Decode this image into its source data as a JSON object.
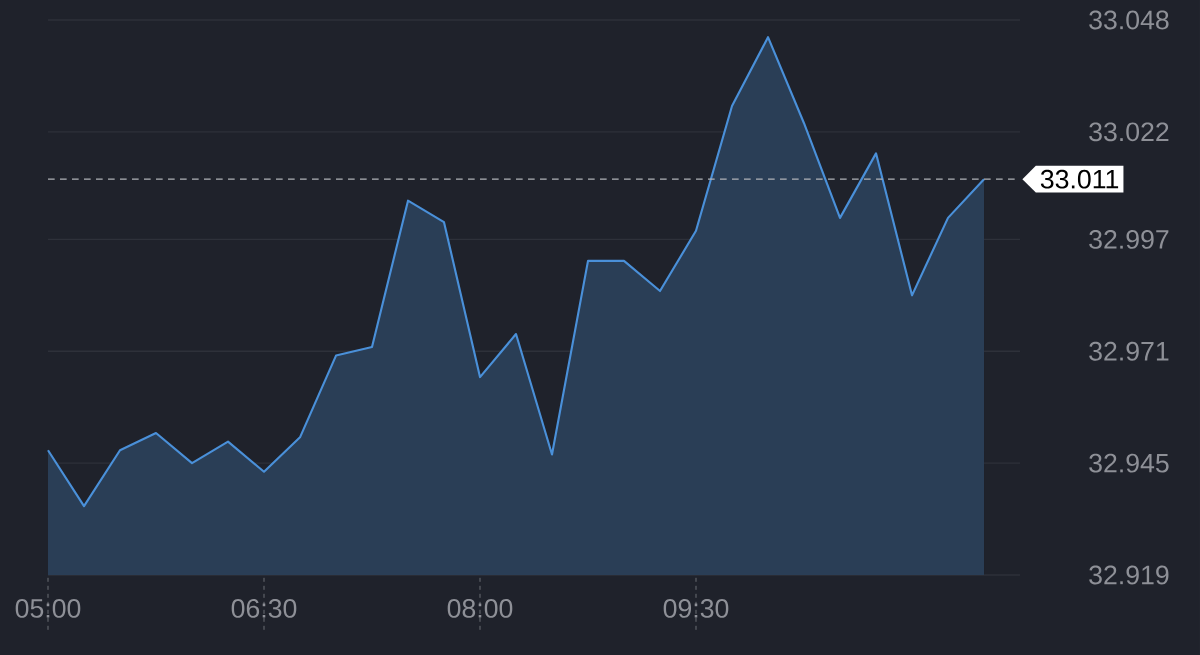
{
  "chart_data": {
    "type": "area",
    "color": "#4a90d9",
    "x": [
      5,
      5.25,
      5.5,
      5.75,
      6,
      6.25,
      6.5,
      6.75,
      7,
      7.25,
      7.5,
      7.75,
      8,
      8.25,
      8.5,
      8.75,
      9,
      9.25,
      9.5,
      9.75,
      10,
      10.25,
      10.5,
      10.75,
      11,
      11.25,
      11.5
    ],
    "values": [
      32.948,
      32.935,
      32.948,
      32.952,
      32.945,
      32.95,
      32.943,
      32.951,
      32.97,
      32.972,
      33.006,
      33.001,
      32.965,
      32.975,
      32.947,
      32.992,
      32.992,
      32.985,
      32.999,
      33.028,
      33.044,
      33.024,
      33.002,
      33.017,
      32.984,
      33.002,
      33.011
    ],
    "xlim": [
      5,
      11.75
    ],
    "ylim": [
      32.919,
      33.048
    ],
    "xticks": [
      {
        "value": 5,
        "label": "05:00"
      },
      {
        "value": 6.5,
        "label": "06:30"
      },
      {
        "value": 8,
        "label": "08:00"
      },
      {
        "value": 9.5,
        "label": "09:30"
      }
    ],
    "yticks": [
      32.919,
      32.945,
      32.971,
      32.997,
      33.022,
      33.048
    ],
    "grid": "y",
    "ref_lines": [
      {
        "axis": "y",
        "value": 33.011,
        "label": "33.011"
      }
    ]
  }
}
